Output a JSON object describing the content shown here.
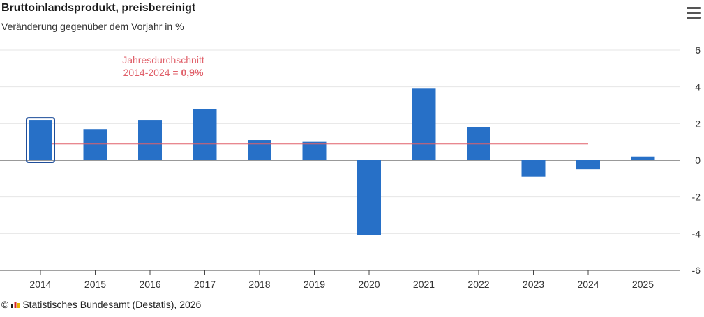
{
  "header": {
    "title": "Bruttoinlandsprodukt, preisbereinigt",
    "subtitle": "Veränderung gegenüber dem Vorjahr in %"
  },
  "menu": {
    "icon": "hamburger-menu-icon"
  },
  "footer": {
    "copyright": "©",
    "source": "Statistisches Bundesamt (Destatis), 2026"
  },
  "colors": {
    "bar": "#2770c7",
    "average_line": "#e0606a",
    "highlight": "#1f4e9a"
  },
  "chart_data": {
    "type": "bar",
    "categories": [
      "2014",
      "2015",
      "2016",
      "2017",
      "2018",
      "2019",
      "2020",
      "2021",
      "2022",
      "2023",
      "2024",
      "2025"
    ],
    "values": [
      2.2,
      1.7,
      2.2,
      2.8,
      1.1,
      1.0,
      -4.1,
      3.9,
      1.8,
      -0.9,
      -0.5,
      0.2
    ],
    "ylim": [
      -6,
      6
    ],
    "yticks": [
      "-6",
      "-4",
      "-2",
      "0",
      "2",
      "4",
      "6"
    ],
    "ytick_values": [
      -6,
      -4,
      -2,
      0,
      2,
      4,
      6
    ],
    "highlighted_category": "2014",
    "average": {
      "value": 0.9,
      "from": "2014",
      "to": "2024",
      "label_line1": "Jahresdurchschnitt",
      "label_line2_prefix": "2014-2024 = ",
      "label_line2_value": "0,9%"
    }
  }
}
